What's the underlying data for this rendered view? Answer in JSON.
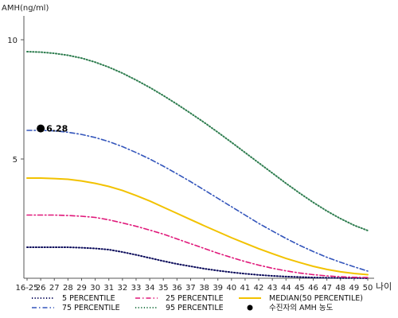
{
  "chart_data": {
    "type": "line",
    "title": "",
    "ylabel": "AMH(ng/ml)",
    "xlabel": "나이",
    "x_categories": [
      "16-25",
      "26",
      "27",
      "28",
      "29",
      "30",
      "31",
      "32",
      "33",
      "34",
      "35",
      "36",
      "37",
      "38",
      "39",
      "40",
      "41",
      "42",
      "43",
      "44",
      "45",
      "46",
      "47",
      "48",
      "49",
      "50"
    ],
    "y_ticks": [
      5,
      10
    ],
    "ylim": [
      0,
      11
    ],
    "grid": false,
    "legend_position": "bottom",
    "series": [
      {
        "name": "5 PERCENTILE",
        "color": "#0a0a5a",
        "style": "dotted",
        "values": [
          1.3,
          1.3,
          1.3,
          1.3,
          1.28,
          1.25,
          1.2,
          1.1,
          0.98,
          0.85,
          0.72,
          0.6,
          0.5,
          0.4,
          0.32,
          0.25,
          0.19,
          0.14,
          0.1,
          0.07,
          0.05,
          0.03,
          0.02,
          0.01,
          0.01,
          0.0
        ]
      },
      {
        "name": "25 PERCENTILE",
        "color": "#e0187a",
        "style": "dash-dot",
        "values": [
          2.65,
          2.65,
          2.65,
          2.63,
          2.6,
          2.55,
          2.45,
          2.32,
          2.18,
          2.02,
          1.85,
          1.65,
          1.45,
          1.25,
          1.05,
          0.87,
          0.7,
          0.55,
          0.42,
          0.31,
          0.22,
          0.15,
          0.1,
          0.06,
          0.04,
          0.03
        ]
      },
      {
        "name": "MEDIAN(50 PERCENTILE)",
        "color": "#f2c200",
        "style": "solid",
        "values": [
          4.2,
          4.2,
          4.18,
          4.15,
          4.08,
          3.98,
          3.85,
          3.68,
          3.47,
          3.24,
          2.98,
          2.72,
          2.46,
          2.2,
          1.95,
          1.7,
          1.47,
          1.24,
          1.03,
          0.83,
          0.66,
          0.5,
          0.37,
          0.27,
          0.2,
          0.15
        ]
      },
      {
        "name": "75 PERCENTILE",
        "color": "#3355bb",
        "style": "dash-dot",
        "values": [
          6.2,
          6.2,
          6.18,
          6.12,
          6.03,
          5.9,
          5.73,
          5.52,
          5.27,
          5.0,
          4.7,
          4.38,
          4.05,
          3.7,
          3.35,
          3.0,
          2.65,
          2.3,
          1.98,
          1.67,
          1.38,
          1.12,
          0.88,
          0.67,
          0.48,
          0.3
        ]
      },
      {
        "name": "95 PERCENTILE",
        "color": "#2e7d4f",
        "style": "dotted",
        "values": [
          9.5,
          9.48,
          9.43,
          9.35,
          9.23,
          9.06,
          8.85,
          8.6,
          8.31,
          8.0,
          7.66,
          7.3,
          6.92,
          6.53,
          6.12,
          5.7,
          5.27,
          4.84,
          4.41,
          3.98,
          3.57,
          3.18,
          2.82,
          2.5,
          2.22,
          2.0
        ]
      }
    ],
    "points": [
      {
        "name": "수진자의 AMH 농도",
        "x": "26",
        "y": 6.28,
        "label": "6.28",
        "color": "#000000"
      }
    ]
  }
}
